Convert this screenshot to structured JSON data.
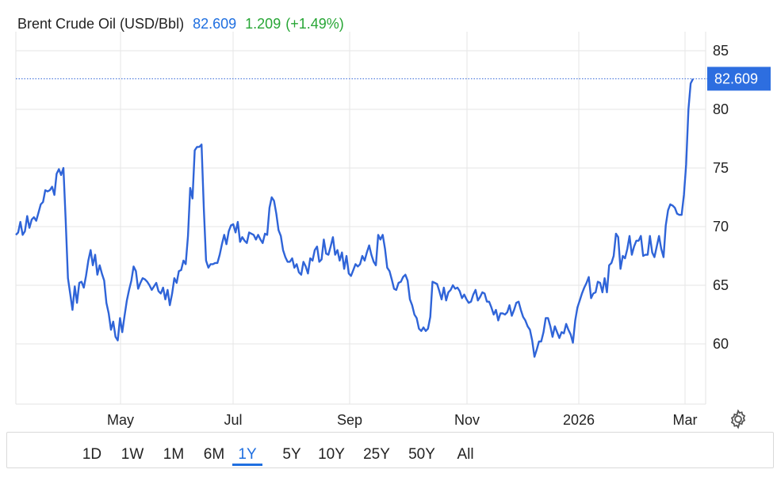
{
  "header": {
    "title": "Brent Crude Oil (USD/Bbl)",
    "price": "82.609",
    "change": "1.209",
    "change_pct": "(+1.49%)"
  },
  "price_badge": "82.609",
  "colors": {
    "line": "#2f64d8",
    "price": "#1f6fe0",
    "positive": "#27a635",
    "grid": "#e6e6e6"
  },
  "range_buttons": [
    {
      "label": "1D",
      "active": false
    },
    {
      "label": "1W",
      "active": false
    },
    {
      "label": "1M",
      "active": false
    },
    {
      "label": "6M",
      "active": false
    },
    {
      "label": "1Y",
      "active": true
    },
    {
      "label": "5Y",
      "active": false
    },
    {
      "label": "10Y",
      "active": false
    },
    {
      "label": "25Y",
      "active": false
    },
    {
      "label": "50Y",
      "active": false
    },
    {
      "label": "All",
      "active": false
    }
  ],
  "settings_icon": "gear-icon",
  "chart_data": {
    "type": "line",
    "title": "Brent Crude Oil (USD/Bbl)",
    "xlabel": "",
    "ylabel": "",
    "ylim": [
      55,
      87
    ],
    "y_ticks": [
      60,
      65,
      70,
      75,
      80,
      85
    ],
    "x_ticks": [
      "May",
      "Jul",
      "Sep",
      "Nov",
      "2026",
      "Mar"
    ],
    "grid": true,
    "last_value": 82.609,
    "series": [
      {
        "values": [
          69.3,
          69.5,
          70.4,
          69.3,
          69.6,
          70.9,
          69.9,
          70.6,
          70.8,
          70.5,
          71.2,
          71.9,
          72.1,
          73.1,
          73.0,
          73.1,
          73.4,
          72.7,
          74.5,
          74.9,
          74.4,
          75.0,
          70.6,
          65.6,
          64.3,
          62.9,
          64.9,
          63.5,
          65.2,
          65.3,
          64.8,
          65.8,
          67.1,
          68.0,
          66.7,
          67.6,
          65.9,
          66.7,
          66.0,
          65.4,
          63.5,
          62.6,
          61.2,
          61.9,
          60.6,
          60.3,
          62.2,
          61.0,
          62.4,
          63.7,
          64.6,
          65.4,
          66.6,
          66.2,
          64.7,
          65.2,
          65.6,
          65.5,
          65.3,
          65.0,
          64.6,
          64.9,
          65.2,
          64.5,
          64.3,
          64.8,
          63.8,
          64.6,
          63.3,
          64.3,
          65.6,
          65.2,
          66.2,
          66.3,
          67.1,
          66.8,
          69.2,
          73.3,
          72.4,
          76.5,
          76.8,
          76.8,
          77.0,
          71.5,
          67.1,
          66.5,
          66.8,
          66.8,
          66.9,
          66.9,
          67.6,
          68.5,
          69.3,
          68.5,
          69.6,
          70.1,
          70.2,
          69.5,
          70.4,
          68.7,
          69.1,
          68.8,
          68.6,
          69.5,
          69.4,
          69.3,
          68.9,
          69.3,
          68.9,
          68.6,
          69.4,
          69.3,
          71.6,
          72.5,
          72.2,
          71.1,
          69.7,
          69.2,
          68.0,
          67.4,
          67.0,
          67.0,
          67.3,
          66.5,
          66.8,
          66.1,
          65.9,
          67.0,
          66.6,
          66.0,
          67.3,
          67.1,
          68.0,
          68.3,
          67.0,
          67.2,
          68.9,
          67.7,
          67.6,
          68.3,
          69.1,
          67.6,
          68.0,
          67.1,
          67.8,
          66.4,
          67.5,
          66.0,
          65.8,
          66.3,
          66.8,
          66.6,
          66.8,
          67.5,
          67.1,
          67.8,
          68.4,
          67.6,
          67.0,
          66.7,
          69.3,
          68.9,
          69.3,
          68.1,
          66.5,
          66.2,
          65.5,
          64.7,
          64.6,
          65.2,
          65.3,
          65.7,
          65.9,
          65.4,
          63.8,
          63.3,
          62.5,
          62.2,
          61.3,
          61.1,
          61.4,
          61.1,
          61.3,
          62.3,
          65.3,
          65.2,
          65.1,
          64.5,
          63.8,
          64.8,
          63.7,
          64.4,
          64.6,
          65.0,
          64.7,
          64.8,
          64.5,
          63.9,
          64.2,
          63.8,
          63.5,
          63.6,
          64.2,
          64.6,
          63.7,
          64.0,
          64.4,
          64.3,
          63.6,
          63.6,
          63.1,
          62.5,
          62.9,
          62.0,
          62.6,
          62.6,
          62.5,
          62.7,
          63.3,
          62.4,
          62.9,
          63.5,
          63.6,
          62.9,
          62.3,
          62.0,
          61.5,
          61.2,
          60.3,
          58.9,
          59.5,
          60.2,
          60.2,
          61.0,
          62.2,
          62.2,
          61.5,
          60.6,
          61.5,
          61.0,
          60.5,
          61.0,
          60.9,
          61.7,
          61.2,
          60.8,
          60.1,
          62.0,
          63.1,
          63.7,
          64.3,
          64.8,
          65.2,
          65.7,
          63.9,
          64.3,
          64.4,
          65.3,
          65.2,
          64.4,
          65.6,
          64.4,
          66.7,
          66.9,
          67.5,
          69.4,
          69.1,
          66.4,
          67.5,
          67.3,
          68.1,
          69.2,
          67.6,
          68.3,
          68.8,
          68.8,
          69.2,
          67.5,
          67.6,
          67.6,
          69.2,
          67.8,
          67.4,
          68.3,
          69.2,
          68.1,
          67.4,
          70.1,
          71.4,
          71.9,
          71.8,
          71.6,
          71.1,
          71.0,
          71.0,
          72.7,
          75.3,
          80.0,
          82.2,
          82.6
        ]
      }
    ]
  }
}
